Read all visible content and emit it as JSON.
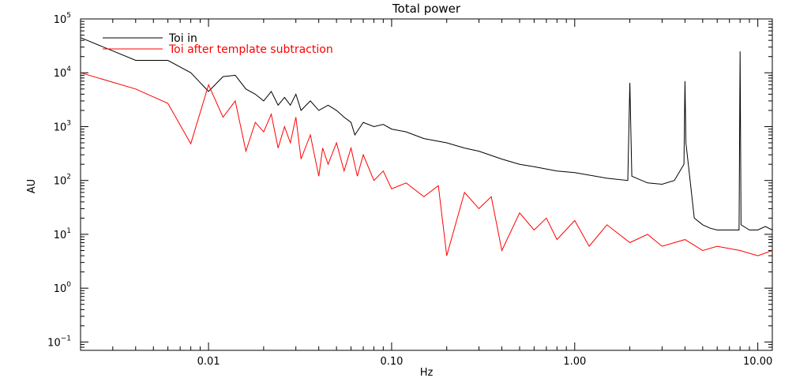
{
  "chart_data": {
    "type": "line",
    "title": "Total power",
    "xlabel": "Hz",
    "ylabel": "AU",
    "xscale": "log",
    "yscale": "log",
    "xlim": [
      0.002,
      12
    ],
    "ylim": [
      0.07,
      100000
    ],
    "grid": false,
    "legend_position": "top-left",
    "x_ticks": [
      {
        "value": 0.01,
        "label": "0.01"
      },
      {
        "value": 0.1,
        "label": "0.10"
      },
      {
        "value": 1,
        "label": "1.00"
      },
      {
        "value": 10,
        "label": "10.00"
      }
    ],
    "y_ticks": [
      {
        "value": 0.1,
        "base": "10",
        "exp": "−1"
      },
      {
        "value": 1,
        "base": "10",
        "exp": "0"
      },
      {
        "value": 10,
        "base": "10",
        "exp": "1"
      },
      {
        "value": 100,
        "base": "10",
        "exp": "2"
      },
      {
        "value": 1000,
        "base": "10",
        "exp": "3"
      },
      {
        "value": 10000,
        "base": "10",
        "exp": "4"
      },
      {
        "value": 100000,
        "base": "10",
        "exp": "5"
      }
    ],
    "series": [
      {
        "name": "Toi in",
        "color": "#000000",
        "x": [
          0.002,
          0.004,
          0.006,
          0.008,
          0.01,
          0.012,
          0.014,
          0.016,
          0.018,
          0.02,
          0.022,
          0.024,
          0.026,
          0.028,
          0.03,
          0.032,
          0.036,
          0.04,
          0.045,
          0.05,
          0.055,
          0.06,
          0.063,
          0.07,
          0.08,
          0.09,
          0.1,
          0.12,
          0.15,
          0.2,
          0.25,
          0.3,
          0.4,
          0.5,
          0.6,
          0.8,
          1.0,
          1.5,
          1.95,
          2.0,
          2.05,
          2.5,
          3.0,
          3.5,
          3.95,
          4.0,
          4.05,
          4.5,
          5.0,
          5.5,
          6.0,
          7.0,
          7.9,
          8.0,
          8.1,
          9.0,
          10.0,
          11.0,
          12.0
        ],
        "y": [
          45000,
          17000,
          17000,
          10000,
          4500,
          8500,
          9000,
          5000,
          4000,
          3000,
          4500,
          2500,
          3500,
          2500,
          4000,
          2000,
          3000,
          2000,
          2500,
          2000,
          1500,
          1200,
          700,
          1200,
          1000,
          1100,
          900,
          800,
          600,
          500,
          400,
          350,
          250,
          200,
          180,
          150,
          140,
          110,
          100,
          6500,
          120,
          90,
          85,
          100,
          200,
          7000,
          500,
          20,
          15,
          13,
          12,
          12,
          12,
          25000,
          15,
          12,
          12,
          14,
          12
        ]
      },
      {
        "name": "Toi after template subtraction",
        "color": "#ff0000",
        "x": [
          0.002,
          0.004,
          0.006,
          0.008,
          0.01,
          0.012,
          0.014,
          0.016,
          0.018,
          0.02,
          0.022,
          0.024,
          0.026,
          0.028,
          0.03,
          0.032,
          0.036,
          0.04,
          0.042,
          0.045,
          0.05,
          0.055,
          0.06,
          0.065,
          0.07,
          0.08,
          0.09,
          0.1,
          0.12,
          0.15,
          0.18,
          0.2,
          0.25,
          0.3,
          0.35,
          0.4,
          0.5,
          0.6,
          0.7,
          0.8,
          1.0,
          1.2,
          1.5,
          2.0,
          2.5,
          3.0,
          4.0,
          5.0,
          6.0,
          8.0,
          10.0,
          12.0
        ],
        "y": [
          10000,
          5000,
          2700,
          480,
          6000,
          1500,
          3000,
          350,
          1200,
          800,
          1700,
          400,
          1000,
          500,
          1500,
          250,
          700,
          120,
          400,
          200,
          500,
          150,
          400,
          120,
          300,
          100,
          150,
          70,
          90,
          50,
          80,
          4,
          60,
          30,
          50,
          5,
          25,
          12,
          20,
          8,
          18,
          6,
          15,
          7,
          10,
          6,
          8,
          5,
          6,
          5,
          4,
          5
        ]
      }
    ]
  }
}
